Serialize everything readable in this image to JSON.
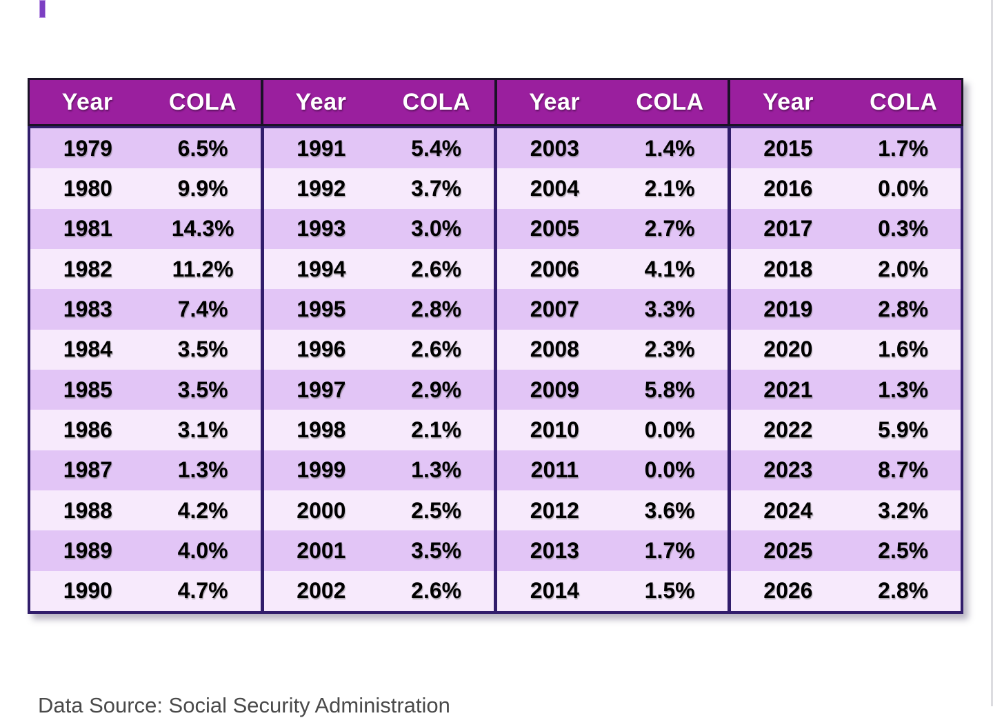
{
  "slide": {
    "footer": "Data Source: Social Security Administration"
  },
  "colors": {
    "accent_bar": "#7C3FC2",
    "header_bg": "#9A1F9E",
    "header_border": "#1A1226",
    "header_text": "#FFFFFF",
    "body_border": "#311D6B",
    "row_odd": "#E2C5F6",
    "row_even": "#F7EAFC",
    "cell_text": "#000000",
    "footer_text": "#4A4A4A"
  },
  "table": {
    "header": {
      "year_label": "Year",
      "cola_label": "COLA"
    },
    "groups": [
      {
        "rows": [
          {
            "year": "1979",
            "cola": "6.5%"
          },
          {
            "year": "1980",
            "cola": "9.9%"
          },
          {
            "year": "1981",
            "cola": "14.3%"
          },
          {
            "year": "1982",
            "cola": "11.2%"
          },
          {
            "year": "1983",
            "cola": "7.4%"
          },
          {
            "year": "1984",
            "cola": "3.5%"
          },
          {
            "year": "1985",
            "cola": "3.5%"
          },
          {
            "year": "1986",
            "cola": "3.1%"
          },
          {
            "year": "1987",
            "cola": "1.3%"
          },
          {
            "year": "1988",
            "cola": "4.2%"
          },
          {
            "year": "1989",
            "cola": "4.0%"
          },
          {
            "year": "1990",
            "cola": "4.7%"
          }
        ]
      },
      {
        "rows": [
          {
            "year": "1991",
            "cola": "5.4%"
          },
          {
            "year": "1992",
            "cola": "3.7%"
          },
          {
            "year": "1993",
            "cola": "3.0%"
          },
          {
            "year": "1994",
            "cola": "2.6%"
          },
          {
            "year": "1995",
            "cola": "2.8%"
          },
          {
            "year": "1996",
            "cola": "2.6%"
          },
          {
            "year": "1997",
            "cola": "2.9%"
          },
          {
            "year": "1998",
            "cola": "2.1%"
          },
          {
            "year": "1999",
            "cola": "1.3%"
          },
          {
            "year": "2000",
            "cola": "2.5%"
          },
          {
            "year": "2001",
            "cola": "3.5%"
          },
          {
            "year": "2002",
            "cola": "2.6%"
          }
        ]
      },
      {
        "rows": [
          {
            "year": "2003",
            "cola": "1.4%"
          },
          {
            "year": "2004",
            "cola": "2.1%"
          },
          {
            "year": "2005",
            "cola": "2.7%"
          },
          {
            "year": "2006",
            "cola": "4.1%"
          },
          {
            "year": "2007",
            "cola": "3.3%"
          },
          {
            "year": "2008",
            "cola": "2.3%"
          },
          {
            "year": "2009",
            "cola": "5.8%"
          },
          {
            "year": "2010",
            "cola": "0.0%"
          },
          {
            "year": "2011",
            "cola": "0.0%"
          },
          {
            "year": "2012",
            "cola": "3.6%"
          },
          {
            "year": "2013",
            "cola": "1.7%"
          },
          {
            "year": "2014",
            "cola": "1.5%"
          }
        ]
      },
      {
        "rows": [
          {
            "year": "2015",
            "cola": "1.7%"
          },
          {
            "year": "2016",
            "cola": "0.0%"
          },
          {
            "year": "2017",
            "cola": "0.3%"
          },
          {
            "year": "2018",
            "cola": "2.0%"
          },
          {
            "year": "2019",
            "cola": "2.8%"
          },
          {
            "year": "2020",
            "cola": "1.6%"
          },
          {
            "year": "2021",
            "cola": "1.3%"
          },
          {
            "year": "2022",
            "cola": "5.9%"
          },
          {
            "year": "2023",
            "cola": "8.7%"
          },
          {
            "year": "2024",
            "cola": "3.2%"
          },
          {
            "year": "2025",
            "cola": "2.5%"
          },
          {
            "year": "2026",
            "cola": "2.8%"
          }
        ]
      }
    ]
  },
  "chart_data": {
    "type": "table",
    "columns": [
      "Year",
      "COLA"
    ],
    "rows": [
      [
        1979,
        "6.5%"
      ],
      [
        1980,
        "9.9%"
      ],
      [
        1981,
        "14.3%"
      ],
      [
        1982,
        "11.2%"
      ],
      [
        1983,
        "7.4%"
      ],
      [
        1984,
        "3.5%"
      ],
      [
        1985,
        "3.5%"
      ],
      [
        1986,
        "3.1%"
      ],
      [
        1987,
        "1.3%"
      ],
      [
        1988,
        "4.2%"
      ],
      [
        1989,
        "4.0%"
      ],
      [
        1990,
        "4.7%"
      ],
      [
        1991,
        "5.4%"
      ],
      [
        1992,
        "3.7%"
      ],
      [
        1993,
        "3.0%"
      ],
      [
        1994,
        "2.6%"
      ],
      [
        1995,
        "2.8%"
      ],
      [
        1996,
        "2.6%"
      ],
      [
        1997,
        "2.9%"
      ],
      [
        1998,
        "2.1%"
      ],
      [
        1999,
        "1.3%"
      ],
      [
        2000,
        "2.5%"
      ],
      [
        2001,
        "3.5%"
      ],
      [
        2002,
        "2.6%"
      ],
      [
        2003,
        "1.4%"
      ],
      [
        2004,
        "2.1%"
      ],
      [
        2005,
        "2.7%"
      ],
      [
        2006,
        "4.1%"
      ],
      [
        2007,
        "3.3%"
      ],
      [
        2008,
        "2.3%"
      ],
      [
        2009,
        "5.8%"
      ],
      [
        2010,
        "0.0%"
      ],
      [
        2011,
        "0.0%"
      ],
      [
        2012,
        "3.6%"
      ],
      [
        2013,
        "1.7%"
      ],
      [
        2014,
        "1.5%"
      ],
      [
        2015,
        "1.7%"
      ],
      [
        2016,
        "0.0%"
      ],
      [
        2017,
        "0.3%"
      ],
      [
        2018,
        "2.0%"
      ],
      [
        2019,
        "2.8%"
      ],
      [
        2020,
        "1.6%"
      ],
      [
        2021,
        "1.3%"
      ],
      [
        2022,
        "5.9%"
      ],
      [
        2023,
        "8.7%"
      ],
      [
        2024,
        "3.2%"
      ],
      [
        2025,
        "2.5%"
      ],
      [
        2026,
        "2.8%"
      ]
    ],
    "title": "",
    "notes": "Annual Social Security cost-of-living adjustments (COLA), 1979-2026, laid out in four year/COLA column pairs",
    "source_caption": "Data Source: Social Security Administration"
  }
}
